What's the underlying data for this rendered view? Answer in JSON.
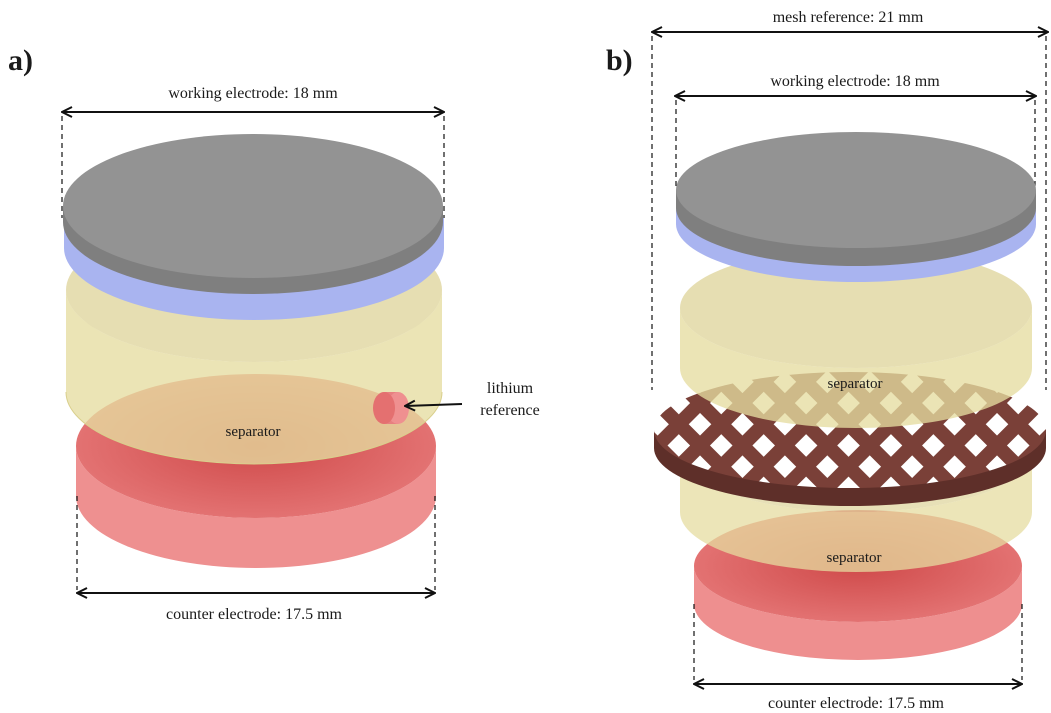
{
  "panels": {
    "a": {
      "panel_label": "a)",
      "working_electrode_label": "working electrode: 18 mm",
      "counter_electrode_label": "counter electrode: 17.5 mm",
      "separator_label": "separator",
      "lithium_reference_line1": "lithium",
      "lithium_reference_line2": "reference"
    },
    "b": {
      "panel_label": "b)",
      "mesh_reference_label": "mesh reference: 21 mm",
      "working_electrode_label": "working electrode: 18 mm",
      "counter_electrode_label": "counter electrode: 17.5 mm",
      "separator_upper_label": "separator",
      "separator_lower_label": "separator"
    }
  },
  "colors": {
    "electrode_gray": "#8f8f8f",
    "current_collector_blue": "#a9b4f0",
    "separator_yellow": "#e4dca0",
    "counter_electrode_red": "#e46a6a",
    "mesh_brown": "#7a4038"
  }
}
